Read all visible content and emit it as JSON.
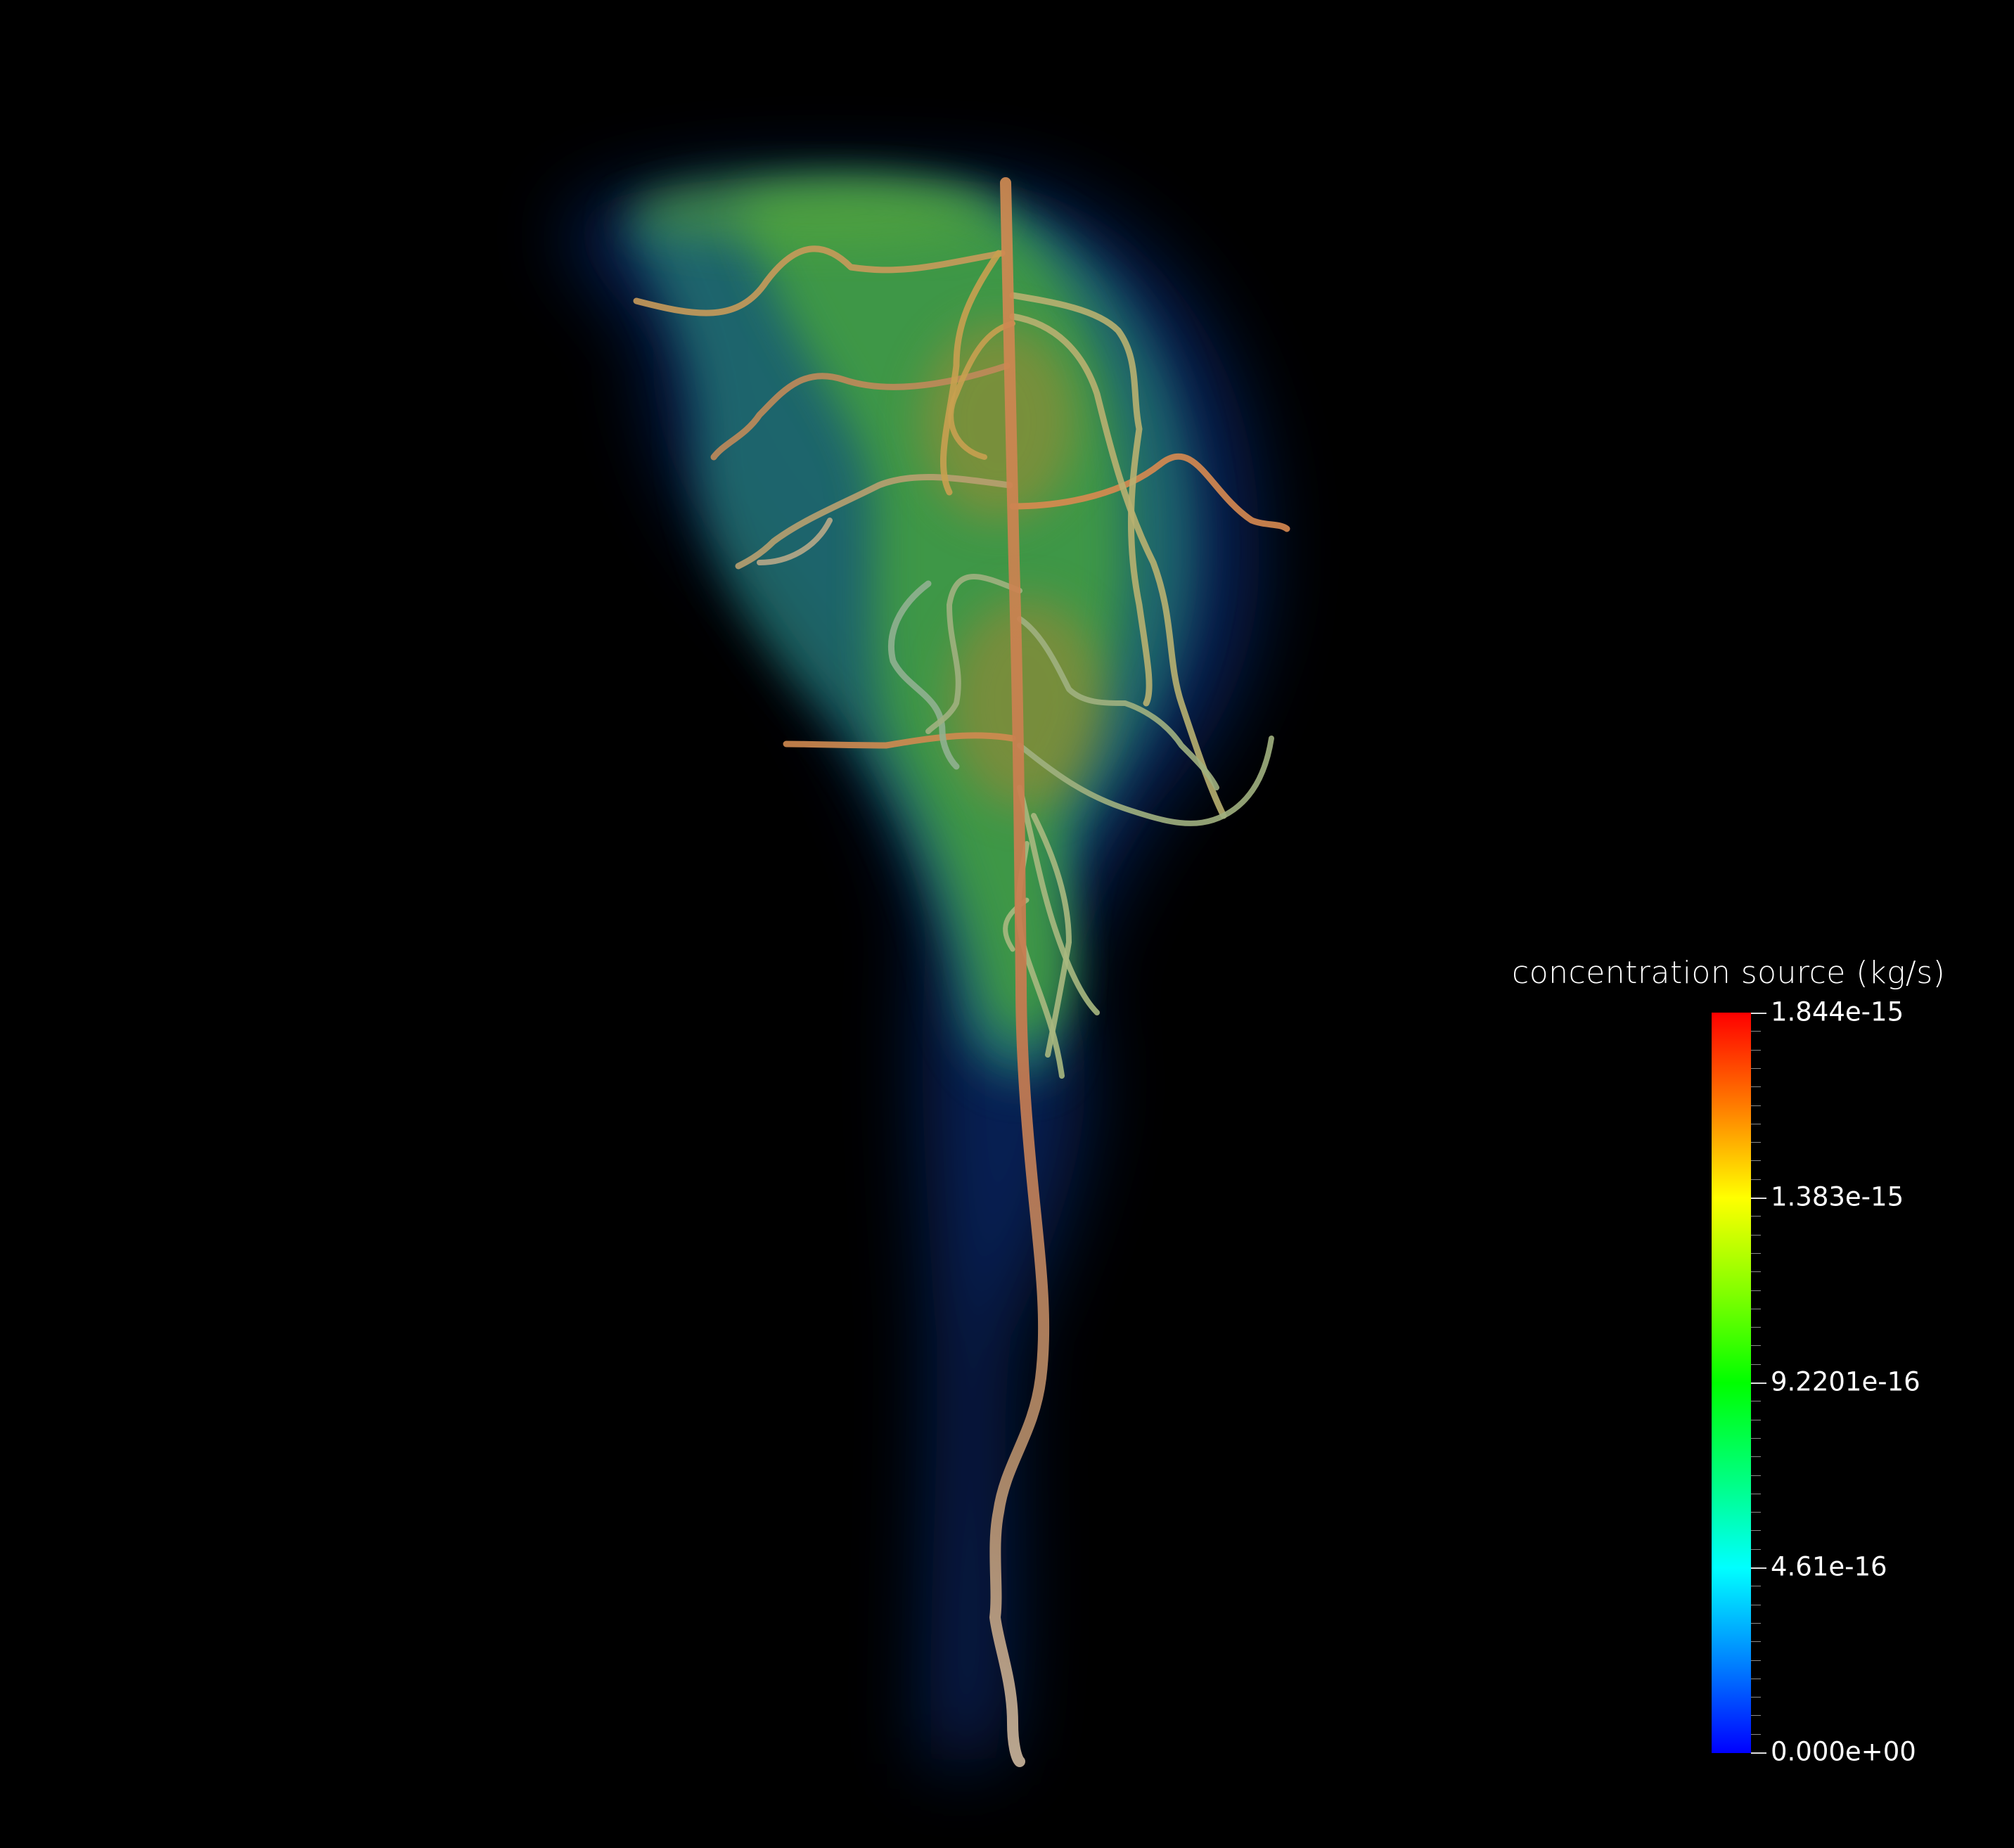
{
  "scene": {
    "background_color": "#000000",
    "subject": "root-system",
    "plume": {
      "colormap": [
        "#0000ff",
        "#00ffff",
        "#00ff00",
        "#ffff00",
        "#ff0000"
      ]
    }
  },
  "legend": {
    "title": "concentration source (kg/s)",
    "range": [
      0.0,
      1.844e-15
    ],
    "labels": [
      "1.844e-15",
      "1.383e-15",
      "9.2201e-16",
      "4.61e-16",
      "0.000e+00"
    ],
    "label_values": [
      1.844e-15,
      1.383e-15,
      9.2201e-16,
      4.61e-16,
      0.0
    ],
    "colormap": [
      "#0000ff",
      "#0080ff",
      "#00ffff",
      "#00ff80",
      "#00ff00",
      "#80ff00",
      "#ffff00",
      "#ff8000",
      "#ff0000"
    ]
  }
}
